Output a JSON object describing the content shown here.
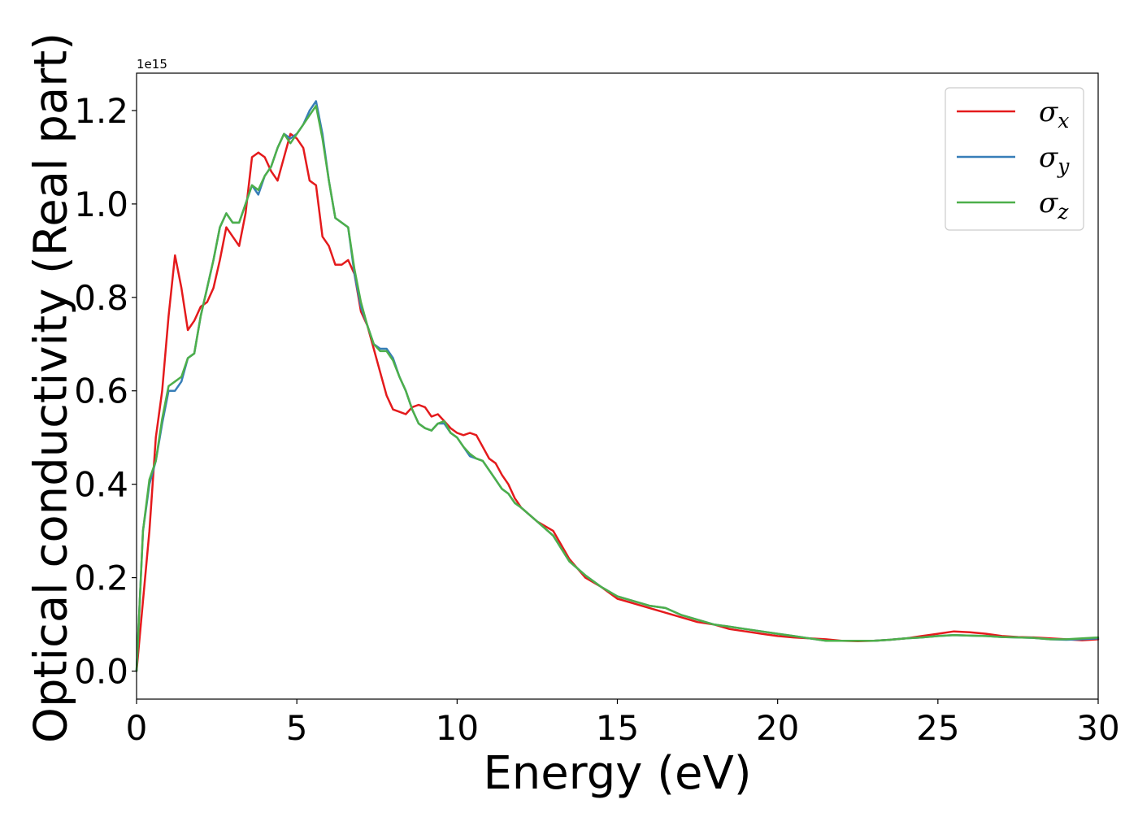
{
  "chart_data": {
    "type": "line",
    "xlabel": "Energy (eV)",
    "ylabel": "Optical conductivity (Real part)",
    "y_offset_label": "1e15",
    "xlim": [
      0,
      30
    ],
    "ylim": [
      -0.06,
      1.28
    ],
    "xticks": [
      0,
      5,
      10,
      15,
      20,
      25,
      30
    ],
    "xtick_labels": [
      "0",
      "5",
      "10",
      "15",
      "20",
      "25",
      "30"
    ],
    "yticks": [
      0.0,
      0.2,
      0.4,
      0.6,
      0.8,
      1.0,
      1.2
    ],
    "ytick_labels": [
      "0.0",
      "0.2",
      "0.4",
      "0.6",
      "0.8",
      "1.0",
      "1.2"
    ],
    "grid": false,
    "legend_position": "top-right",
    "series": [
      {
        "name": "σx",
        "label_base": "σ",
        "label_sub": "x",
        "color": "#e41a1c",
        "points": [
          [
            0,
            0.0
          ],
          [
            0.2,
            0.15
          ],
          [
            0.4,
            0.3
          ],
          [
            0.6,
            0.5
          ],
          [
            0.8,
            0.6
          ],
          [
            1.0,
            0.76
          ],
          [
            1.2,
            0.89
          ],
          [
            1.4,
            0.82
          ],
          [
            1.6,
            0.73
          ],
          [
            1.8,
            0.75
          ],
          [
            2.0,
            0.78
          ],
          [
            2.2,
            0.79
          ],
          [
            2.4,
            0.82
          ],
          [
            2.6,
            0.88
          ],
          [
            2.8,
            0.95
          ],
          [
            3.0,
            0.93
          ],
          [
            3.2,
            0.91
          ],
          [
            3.4,
            0.98
          ],
          [
            3.6,
            1.1
          ],
          [
            3.8,
            1.11
          ],
          [
            4.0,
            1.1
          ],
          [
            4.2,
            1.07
          ],
          [
            4.4,
            1.05
          ],
          [
            4.6,
            1.1
          ],
          [
            4.8,
            1.15
          ],
          [
            5.0,
            1.14
          ],
          [
            5.2,
            1.12
          ],
          [
            5.4,
            1.05
          ],
          [
            5.6,
            1.04
          ],
          [
            5.8,
            0.93
          ],
          [
            6.0,
            0.91
          ],
          [
            6.2,
            0.87
          ],
          [
            6.4,
            0.87
          ],
          [
            6.6,
            0.88
          ],
          [
            6.8,
            0.85
          ],
          [
            7.0,
            0.77
          ],
          [
            7.2,
            0.74
          ],
          [
            7.4,
            0.69
          ],
          [
            7.6,
            0.64
          ],
          [
            7.8,
            0.59
          ],
          [
            8.0,
            0.56
          ],
          [
            8.2,
            0.555
          ],
          [
            8.4,
            0.55
          ],
          [
            8.6,
            0.565
          ],
          [
            8.8,
            0.57
          ],
          [
            9.0,
            0.565
          ],
          [
            9.2,
            0.545
          ],
          [
            9.4,
            0.55
          ],
          [
            9.6,
            0.535
          ],
          [
            9.8,
            0.52
          ],
          [
            10.0,
            0.51
          ],
          [
            10.2,
            0.505
          ],
          [
            10.4,
            0.51
          ],
          [
            10.6,
            0.505
          ],
          [
            10.8,
            0.48
          ],
          [
            11.0,
            0.455
          ],
          [
            11.2,
            0.445
          ],
          [
            11.4,
            0.42
          ],
          [
            11.6,
            0.4
          ],
          [
            11.8,
            0.37
          ],
          [
            12.0,
            0.35
          ],
          [
            12.5,
            0.32
          ],
          [
            13.0,
            0.3
          ],
          [
            13.5,
            0.24
          ],
          [
            14.0,
            0.2
          ],
          [
            14.5,
            0.18
          ],
          [
            15.0,
            0.155
          ],
          [
            15.5,
            0.145
          ],
          [
            16.0,
            0.135
          ],
          [
            16.5,
            0.125
          ],
          [
            17.0,
            0.115
          ],
          [
            17.5,
            0.105
          ],
          [
            18.0,
            0.1
          ],
          [
            18.5,
            0.09
          ],
          [
            19.0,
            0.085
          ],
          [
            19.5,
            0.08
          ],
          [
            20.0,
            0.075
          ],
          [
            20.5,
            0.072
          ],
          [
            21.0,
            0.07
          ],
          [
            21.5,
            0.068
          ],
          [
            22.0,
            0.065
          ],
          [
            22.5,
            0.064
          ],
          [
            23.0,
            0.065
          ],
          [
            23.5,
            0.067
          ],
          [
            24.0,
            0.07
          ],
          [
            24.5,
            0.075
          ],
          [
            25.0,
            0.08
          ],
          [
            25.5,
            0.085
          ],
          [
            26.0,
            0.083
          ],
          [
            26.5,
            0.08
          ],
          [
            27.0,
            0.075
          ],
          [
            27.5,
            0.073
          ],
          [
            28.0,
            0.072
          ],
          [
            28.5,
            0.07
          ],
          [
            29.0,
            0.068
          ],
          [
            29.5,
            0.066
          ],
          [
            30.0,
            0.068
          ]
        ]
      },
      {
        "name": "σy",
        "label_base": "σ",
        "label_sub": "y",
        "color": "#377eb8",
        "points": [
          [
            0,
            0.0
          ],
          [
            0.2,
            0.3
          ],
          [
            0.4,
            0.4
          ],
          [
            0.6,
            0.45
          ],
          [
            0.8,
            0.53
          ],
          [
            1.0,
            0.6
          ],
          [
            1.2,
            0.6
          ],
          [
            1.4,
            0.62
          ],
          [
            1.6,
            0.67
          ],
          [
            1.8,
            0.68
          ],
          [
            2.0,
            0.76
          ],
          [
            2.2,
            0.82
          ],
          [
            2.4,
            0.88
          ],
          [
            2.6,
            0.95
          ],
          [
            2.8,
            0.98
          ],
          [
            3.0,
            0.96
          ],
          [
            3.2,
            0.96
          ],
          [
            3.4,
            1.0
          ],
          [
            3.6,
            1.04
          ],
          [
            3.8,
            1.02
          ],
          [
            4.0,
            1.06
          ],
          [
            4.2,
            1.08
          ],
          [
            4.4,
            1.12
          ],
          [
            4.6,
            1.15
          ],
          [
            4.8,
            1.14
          ],
          [
            5.0,
            1.15
          ],
          [
            5.2,
            1.17
          ],
          [
            5.4,
            1.2
          ],
          [
            5.6,
            1.22
          ],
          [
            5.8,
            1.15
          ],
          [
            6.0,
            1.05
          ],
          [
            6.2,
            0.97
          ],
          [
            6.4,
            0.96
          ],
          [
            6.6,
            0.95
          ],
          [
            6.8,
            0.85
          ],
          [
            7.0,
            0.78
          ],
          [
            7.2,
            0.74
          ],
          [
            7.4,
            0.7
          ],
          [
            7.6,
            0.69
          ],
          [
            7.8,
            0.69
          ],
          [
            8.0,
            0.67
          ],
          [
            8.2,
            0.63
          ],
          [
            8.4,
            0.6
          ],
          [
            8.6,
            0.56
          ],
          [
            8.8,
            0.53
          ],
          [
            9.0,
            0.52
          ],
          [
            9.2,
            0.515
          ],
          [
            9.4,
            0.53
          ],
          [
            9.6,
            0.53
          ],
          [
            9.8,
            0.51
          ],
          [
            10.0,
            0.5
          ],
          [
            10.2,
            0.48
          ],
          [
            10.4,
            0.46
          ],
          [
            10.6,
            0.455
          ],
          [
            10.8,
            0.45
          ],
          [
            11.0,
            0.43
          ],
          [
            11.2,
            0.41
          ],
          [
            11.4,
            0.39
          ],
          [
            11.6,
            0.38
          ],
          [
            11.8,
            0.36
          ],
          [
            12.0,
            0.35
          ],
          [
            12.5,
            0.32
          ],
          [
            13.0,
            0.29
          ],
          [
            13.5,
            0.235
          ],
          [
            14.0,
            0.205
          ],
          [
            14.5,
            0.18
          ],
          [
            15.0,
            0.16
          ],
          [
            15.5,
            0.15
          ],
          [
            16.0,
            0.14
          ],
          [
            16.5,
            0.135
          ],
          [
            17.0,
            0.12
          ],
          [
            17.5,
            0.11
          ],
          [
            18.0,
            0.1
          ],
          [
            18.5,
            0.095
          ],
          [
            19.0,
            0.09
          ],
          [
            19.5,
            0.085
          ],
          [
            20.0,
            0.08
          ],
          [
            20.5,
            0.075
          ],
          [
            21.0,
            0.07
          ],
          [
            21.5,
            0.065
          ],
          [
            22.0,
            0.065
          ],
          [
            22.5,
            0.065
          ],
          [
            23.0,
            0.065
          ],
          [
            23.5,
            0.067
          ],
          [
            24.0,
            0.07
          ],
          [
            24.5,
            0.072
          ],
          [
            25.0,
            0.075
          ],
          [
            25.5,
            0.077
          ],
          [
            26.0,
            0.076
          ],
          [
            26.5,
            0.075
          ],
          [
            27.0,
            0.073
          ],
          [
            27.5,
            0.072
          ],
          [
            28.0,
            0.071
          ],
          [
            28.5,
            0.068
          ],
          [
            29.0,
            0.067
          ],
          [
            29.5,
            0.068
          ],
          [
            30.0,
            0.07
          ]
        ]
      },
      {
        "name": "σz",
        "label_base": "σ",
        "label_sub": "z",
        "color": "#4daf4a",
        "points": [
          [
            0,
            0.0
          ],
          [
            0.2,
            0.3
          ],
          [
            0.4,
            0.41
          ],
          [
            0.6,
            0.45
          ],
          [
            0.8,
            0.54
          ],
          [
            1.0,
            0.61
          ],
          [
            1.2,
            0.62
          ],
          [
            1.4,
            0.63
          ],
          [
            1.6,
            0.67
          ],
          [
            1.8,
            0.68
          ],
          [
            2.0,
            0.76
          ],
          [
            2.2,
            0.82
          ],
          [
            2.4,
            0.88
          ],
          [
            2.6,
            0.95
          ],
          [
            2.8,
            0.98
          ],
          [
            3.0,
            0.96
          ],
          [
            3.2,
            0.96
          ],
          [
            3.4,
            1.0
          ],
          [
            3.6,
            1.04
          ],
          [
            3.8,
            1.03
          ],
          [
            4.0,
            1.06
          ],
          [
            4.2,
            1.08
          ],
          [
            4.4,
            1.12
          ],
          [
            4.6,
            1.15
          ],
          [
            4.8,
            1.13
          ],
          [
            5.0,
            1.15
          ],
          [
            5.2,
            1.17
          ],
          [
            5.4,
            1.19
          ],
          [
            5.6,
            1.21
          ],
          [
            5.8,
            1.14
          ],
          [
            6.0,
            1.05
          ],
          [
            6.2,
            0.97
          ],
          [
            6.4,
            0.96
          ],
          [
            6.6,
            0.95
          ],
          [
            6.8,
            0.86
          ],
          [
            7.0,
            0.79
          ],
          [
            7.2,
            0.74
          ],
          [
            7.4,
            0.7
          ],
          [
            7.6,
            0.685
          ],
          [
            7.8,
            0.685
          ],
          [
            8.0,
            0.665
          ],
          [
            8.2,
            0.63
          ],
          [
            8.4,
            0.6
          ],
          [
            8.6,
            0.56
          ],
          [
            8.8,
            0.53
          ],
          [
            9.0,
            0.52
          ],
          [
            9.2,
            0.515
          ],
          [
            9.4,
            0.53
          ],
          [
            9.6,
            0.535
          ],
          [
            9.8,
            0.51
          ],
          [
            10.0,
            0.5
          ],
          [
            10.2,
            0.48
          ],
          [
            10.4,
            0.465
          ],
          [
            10.6,
            0.455
          ],
          [
            10.8,
            0.45
          ],
          [
            11.0,
            0.43
          ],
          [
            11.2,
            0.41
          ],
          [
            11.4,
            0.39
          ],
          [
            11.6,
            0.38
          ],
          [
            11.8,
            0.36
          ],
          [
            12.0,
            0.35
          ],
          [
            12.5,
            0.32
          ],
          [
            13.0,
            0.29
          ],
          [
            13.5,
            0.235
          ],
          [
            14.0,
            0.205
          ],
          [
            14.5,
            0.18
          ],
          [
            15.0,
            0.16
          ],
          [
            15.5,
            0.15
          ],
          [
            16.0,
            0.14
          ],
          [
            16.5,
            0.135
          ],
          [
            17.0,
            0.12
          ],
          [
            17.5,
            0.11
          ],
          [
            18.0,
            0.1
          ],
          [
            18.5,
            0.095
          ],
          [
            19.0,
            0.09
          ],
          [
            19.5,
            0.085
          ],
          [
            20.0,
            0.08
          ],
          [
            20.5,
            0.075
          ],
          [
            21.0,
            0.07
          ],
          [
            21.5,
            0.065
          ],
          [
            22.0,
            0.065
          ],
          [
            22.5,
            0.065
          ],
          [
            23.0,
            0.065
          ],
          [
            23.5,
            0.067
          ],
          [
            24.0,
            0.07
          ],
          [
            24.5,
            0.072
          ],
          [
            25.0,
            0.075
          ],
          [
            25.5,
            0.077
          ],
          [
            26.0,
            0.076
          ],
          [
            26.5,
            0.075
          ],
          [
            27.0,
            0.073
          ],
          [
            27.5,
            0.072
          ],
          [
            28.0,
            0.071
          ],
          [
            28.5,
            0.068
          ],
          [
            29.0,
            0.068
          ],
          [
            29.5,
            0.07
          ],
          [
            30.0,
            0.072
          ]
        ]
      }
    ]
  }
}
